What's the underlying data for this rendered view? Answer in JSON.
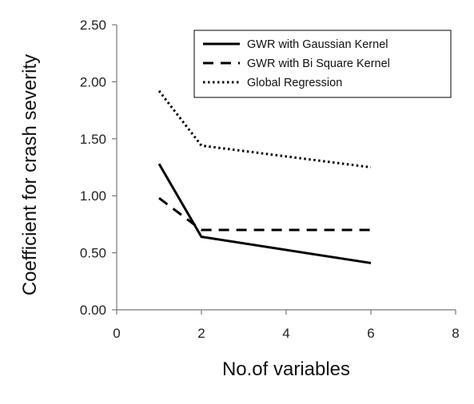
{
  "chart_data": {
    "type": "line",
    "xlabel": "No.of variables",
    "ylabel": "Coefficient for crash severity",
    "xlim": [
      0,
      8
    ],
    "ylim": [
      0,
      2.5
    ],
    "x_ticks": [
      "0",
      "2",
      "4",
      "6",
      "8"
    ],
    "y_ticks": [
      "0.00",
      "0.50",
      "1.00",
      "1.50",
      "2.00",
      "2.50"
    ],
    "grid": false,
    "legend_position": "top-right",
    "series": [
      {
        "name": "GWR with Gaussian Kernel",
        "style": "solid",
        "color": "#000000",
        "x": [
          1,
          2,
          6
        ],
        "y": [
          1.28,
          0.64,
          0.41
        ]
      },
      {
        "name": "GWR with Bi Square Kernel",
        "style": "dashed",
        "color": "#000000",
        "x": [
          1,
          2,
          6
        ],
        "y": [
          0.98,
          0.7,
          0.7
        ]
      },
      {
        "name": "Global Regression",
        "style": "dotted",
        "color": "#000000",
        "x": [
          1,
          2,
          6
        ],
        "y": [
          1.92,
          1.44,
          1.25
        ]
      }
    ]
  }
}
